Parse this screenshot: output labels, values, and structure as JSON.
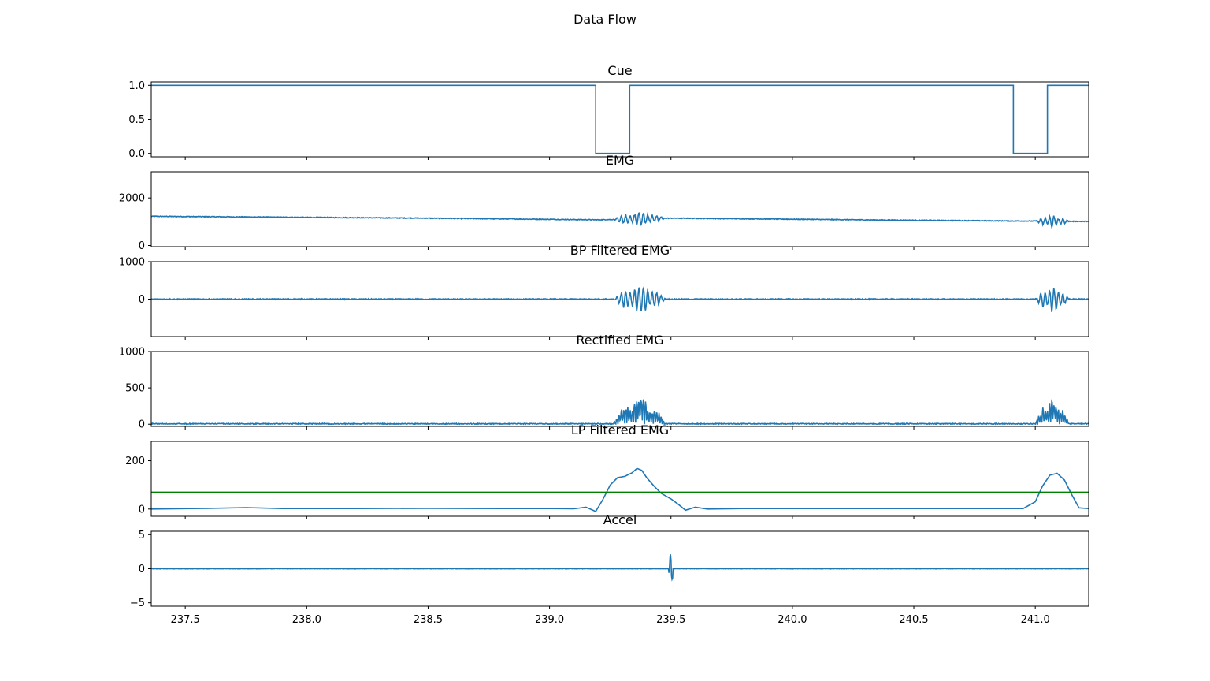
{
  "figure": {
    "title": "Data Flow"
  },
  "chart_data": [
    {
      "type": "line",
      "title": "Cue",
      "xlim": [
        237.36,
        241.22
      ],
      "ylim": [
        -0.05,
        1.05
      ],
      "yticks": [
        "0.0",
        "0.5",
        "1.0"
      ],
      "ytick_values": [
        0.0,
        0.5,
        1.0
      ],
      "xtick_labels_visible": false,
      "series": [
        {
          "color": "#1f77b4",
          "kind": "step",
          "x": [
            237.36,
            239.19,
            239.19,
            239.33,
            239.33,
            240.91,
            240.91,
            241.05,
            241.05,
            241.22
          ],
          "y": [
            1,
            1,
            0,
            0,
            1,
            1,
            0,
            0,
            1,
            1
          ]
        }
      ]
    },
    {
      "type": "line",
      "title": "EMG",
      "xlim": [
        237.36,
        241.22
      ],
      "ylim": [
        -50,
        3100
      ],
      "yticks": [
        "0",
        "2000"
      ],
      "ytick_values": [
        0,
        2000
      ],
      "xtick_labels_visible": false,
      "series": [
        {
          "color": "#1f77b4",
          "kind": "signal",
          "baseline": [
            [
              237.36,
              1230
            ],
            [
              238.5,
              1150
            ],
            [
              239.2,
              1080
            ],
            [
              239.5,
              1150
            ],
            [
              240.5,
              1060
            ],
            [
              241.22,
              1010
            ]
          ],
          "noise": 15,
          "bursts": [
            {
              "x0": 239.26,
              "x1": 239.48,
              "amp": 320,
              "freq": 55
            },
            {
              "x0": 241.0,
              "x1": 241.14,
              "amp": 260,
              "freq": 55
            }
          ]
        }
      ]
    },
    {
      "type": "line",
      "title": "BP Filtered EMG",
      "xlim": [
        237.36,
        241.22
      ],
      "ylim": [
        -1000,
        1000
      ],
      "yticks": [
        "0",
        "1000"
      ],
      "ytick_values": [
        0,
        1000
      ],
      "xtick_labels_visible": false,
      "series": [
        {
          "color": "#1f77b4",
          "kind": "signal",
          "baseline": [
            [
              237.36,
              0
            ],
            [
              241.22,
              0
            ]
          ],
          "noise": 12,
          "bursts": [
            {
              "x0": 239.26,
              "x1": 239.48,
              "amp": 400,
              "freq": 55
            },
            {
              "x0": 241.0,
              "x1": 241.14,
              "amp": 380,
              "freq": 55
            }
          ]
        }
      ]
    },
    {
      "type": "line",
      "title": "Rectified EMG",
      "xlim": [
        237.36,
        241.22
      ],
      "ylim": [
        -30,
        1000
      ],
      "yticks": [
        "0",
        "500",
        "1000"
      ],
      "ytick_values": [
        0,
        500,
        1000
      ],
      "xtick_labels_visible": false,
      "series": [
        {
          "color": "#1f77b4",
          "kind": "rectified",
          "baseline": [
            [
              237.36,
              0
            ],
            [
              241.22,
              0
            ]
          ],
          "noise": 12,
          "bursts": [
            {
              "x0": 239.26,
              "x1": 239.48,
              "amp": 420,
              "freq": 55
            },
            {
              "x0": 241.0,
              "x1": 241.14,
              "amp": 390,
              "freq": 55
            }
          ]
        }
      ]
    },
    {
      "type": "line",
      "title": "LP Filtered EMG",
      "xlim": [
        237.36,
        241.22
      ],
      "ylim": [
        -30,
        280
      ],
      "yticks": [
        "0",
        "200"
      ],
      "ytick_values": [
        0,
        200
      ],
      "xtick_labels_visible": false,
      "series": [
        {
          "color": "#1f77b4",
          "kind": "curve",
          "x": [
            237.36,
            237.6,
            237.75,
            237.9,
            238.2,
            238.5,
            238.8,
            239.0,
            239.1,
            239.15,
            239.19,
            239.22,
            239.25,
            239.28,
            239.31,
            239.34,
            239.36,
            239.38,
            239.4,
            239.43,
            239.46,
            239.5,
            239.53,
            239.56,
            239.6,
            239.65,
            239.8,
            240.2,
            240.6,
            240.95,
            241.0,
            241.03,
            241.06,
            241.09,
            241.12,
            241.15,
            241.18,
            241.22
          ],
          "y": [
            0,
            3,
            6,
            2,
            2,
            3,
            2,
            2,
            1,
            8,
            -10,
            40,
            100,
            130,
            135,
            150,
            168,
            160,
            130,
            95,
            65,
            42,
            20,
            -5,
            8,
            0,
            2,
            2,
            2,
            2,
            30,
            95,
            140,
            148,
            120,
            60,
            5,
            2
          ]
        },
        {
          "color": "#008000",
          "kind": "hline",
          "y": 70
        }
      ]
    },
    {
      "type": "line",
      "title": "Accel",
      "xlim": [
        237.36,
        241.22
      ],
      "ylim": [
        -5.5,
        5.5
      ],
      "yticks": [
        "−5",
        "0",
        "5"
      ],
      "ytick_values": [
        -5,
        0,
        5
      ],
      "xticks": [
        "237.5",
        "238.0",
        "238.5",
        "239.0",
        "239.5",
        "240.0",
        "240.5",
        "241.0"
      ],
      "xtick_values": [
        237.5,
        238.0,
        238.5,
        239.0,
        239.5,
        240.0,
        240.5,
        241.0
      ],
      "xtick_labels_visible": true,
      "series": [
        {
          "color": "#1f77b4",
          "kind": "signal",
          "baseline": [
            [
              237.36,
              0
            ],
            [
              241.22,
              0
            ]
          ],
          "noise": 0.03,
          "bursts": [
            {
              "x0": 239.49,
              "x1": 239.51,
              "amp": 4.4,
              "freq": 400
            }
          ]
        }
      ]
    }
  ]
}
